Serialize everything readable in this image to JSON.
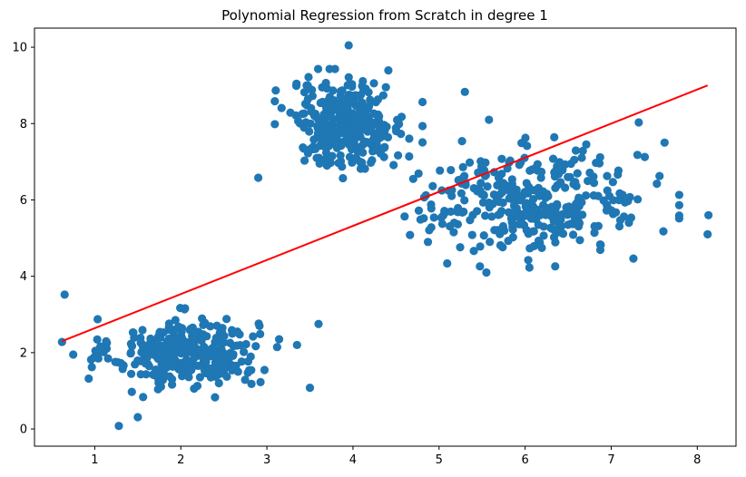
{
  "chart_data": {
    "type": "scatter",
    "title": "Polynomial Regression from Scratch in degree 1",
    "xlabel": "",
    "ylabel": "",
    "xlim": [
      0.3,
      8.45
    ],
    "ylim": [
      -0.45,
      10.5
    ],
    "x_ticks": [
      1,
      2,
      3,
      4,
      5,
      6,
      7,
      8
    ],
    "y_ticks": [
      0,
      2,
      4,
      6,
      8,
      10
    ],
    "grid": false,
    "legend": "none",
    "colors": {
      "points": "#1f77b4",
      "line": "#ff0000",
      "axes": "#000000"
    },
    "series": [
      {
        "kind": "scatter",
        "clusters": [
          {
            "center_x": 2.05,
            "center_y": 2.0,
            "sd_x": 0.42,
            "sd_y": 0.45,
            "count": 330
          },
          {
            "center_x": 3.95,
            "center_y": 8.0,
            "sd_x": 0.33,
            "sd_y": 0.55,
            "count": 330
          },
          {
            "center_x": 6.1,
            "center_y": 5.95,
            "sd_x": 0.65,
            "sd_y": 0.65,
            "count": 340
          }
        ],
        "outliers": [
          {
            "x": 0.65,
            "y": 3.52
          },
          {
            "x": 0.62,
            "y": 2.28
          },
          {
            "x": 0.75,
            "y": 1.95
          },
          {
            "x": 0.93,
            "y": 1.32
          },
          {
            "x": 1.28,
            "y": 0.08
          },
          {
            "x": 1.5,
            "y": 0.31
          },
          {
            "x": 2.9,
            "y": 6.58
          },
          {
            "x": 3.5,
            "y": 1.08
          },
          {
            "x": 3.6,
            "y": 2.75
          },
          {
            "x": 3.35,
            "y": 2.2
          },
          {
            "x": 3.95,
            "y": 10.05
          },
          {
            "x": 5.3,
            "y": 8.83
          },
          {
            "x": 7.32,
            "y": 8.03
          },
          {
            "x": 8.12,
            "y": 5.1
          },
          {
            "x": 8.13,
            "y": 5.6
          },
          {
            "x": 7.62,
            "y": 7.5
          },
          {
            "x": 5.55,
            "y": 4.1
          },
          {
            "x": 6.05,
            "y": 4.23
          },
          {
            "x": 4.7,
            "y": 6.55
          },
          {
            "x": 5.58,
            "y": 8.1
          }
        ]
      },
      {
        "kind": "line",
        "x": [
          0.62,
          8.12
        ],
        "y": [
          2.3,
          9.0
        ]
      }
    ]
  }
}
